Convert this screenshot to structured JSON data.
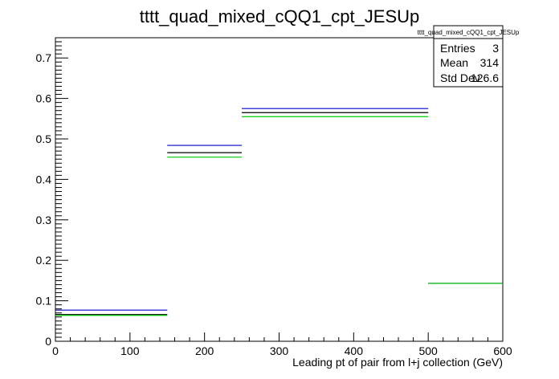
{
  "chart_data": {
    "type": "histogram",
    "title": "tttt_quad_mixed_cQQ1_cpt_JESUp",
    "xlabel": "Leading pt of pair from l+j collection (GeV)",
    "ylabel": "",
    "xlim": [
      0,
      600
    ],
    "ylim": [
      0,
      0.75
    ],
    "x_ticks": [
      0,
      100,
      200,
      300,
      400,
      500,
      600
    ],
    "y_ticks": [
      0,
      0.1,
      0.2,
      0.3,
      0.4,
      0.5,
      0.6,
      0.7
    ],
    "bin_edges": [
      0,
      150,
      250,
      500,
      600
    ],
    "series": [
      {
        "color": "#0000cc",
        "values": [
          0.077,
          0.484,
          0.575,
          0.143
        ]
      },
      {
        "color": "#000000",
        "values": [
          0.066,
          0.466,
          0.565,
          0.143
        ]
      },
      {
        "color": "#00cc00",
        "values": [
          0.064,
          0.455,
          0.555,
          0.143
        ]
      }
    ],
    "stats_box": {
      "title": "tttt_quad_mixed_cQQ1_cpt_JESUp",
      "rows": [
        {
          "label": "Entries",
          "value": "3"
        },
        {
          "label": "Mean",
          "value": "314"
        },
        {
          "label": "Std Dev",
          "value": "126.6"
        }
      ]
    },
    "grid": false,
    "legend": "none"
  }
}
